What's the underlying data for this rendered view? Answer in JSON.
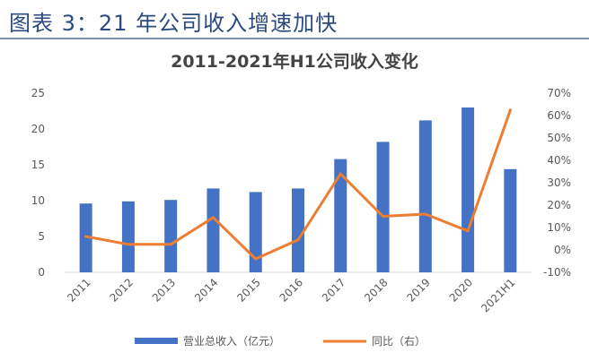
{
  "header": {
    "title": "图表 3：21 年公司收入增速加快"
  },
  "chart_data": {
    "type": "bar",
    "title": "2011-2021年H1公司收入变化",
    "categories": [
      "2011",
      "2012",
      "2013",
      "2014",
      "2015",
      "2016",
      "2017",
      "2018",
      "2019",
      "2020",
      "2021H1"
    ],
    "series": [
      {
        "name": "营业总收入（亿元）",
        "type": "bar",
        "axis": "left",
        "color": "#4472c4",
        "values": [
          9.6,
          9.9,
          10.1,
          11.7,
          11.2,
          11.7,
          15.8,
          18.2,
          21.2,
          23.0,
          14.4
        ]
      },
      {
        "name": "同比（右）",
        "type": "line",
        "axis": "right",
        "color": "#ed7d31",
        "values": [
          6.0,
          2.5,
          2.5,
          14.5,
          -4.0,
          4.5,
          34.0,
          15.0,
          16.0,
          8.5,
          62.5
        ]
      }
    ],
    "y_left": {
      "min": 0,
      "max": 25,
      "ticks": [
        "0",
        "5",
        "10",
        "15",
        "20",
        "25"
      ]
    },
    "y_right": {
      "min": -10,
      "max": 70,
      "ticks": [
        "-10%",
        "0%",
        "10%",
        "20%",
        "30%",
        "40%",
        "50%",
        "60%",
        "70%"
      ]
    },
    "grid": false,
    "legend": "bottom"
  }
}
